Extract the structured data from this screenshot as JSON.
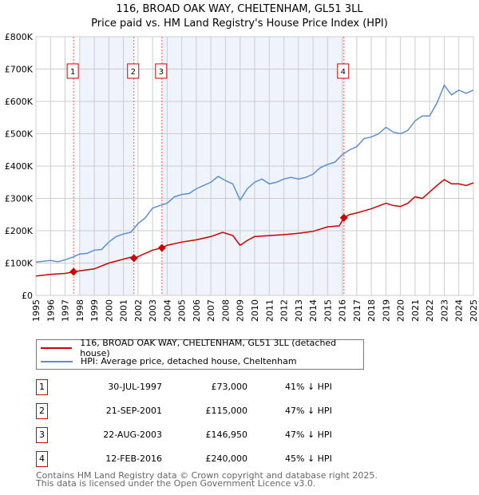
{
  "chart_data": {
    "type": "line",
    "title": "116, BROAD OAK WAY, CHELTENHAM, GL51 3LL",
    "subtitle": "Price paid vs. HM Land Registry's House Price Index (HPI)",
    "xlim": [
      1995,
      2025
    ],
    "ylim": [
      0,
      800000
    ],
    "x_ticks": [
      "1995",
      "1996",
      "1997",
      "1998",
      "1999",
      "2000",
      "2001",
      "2002",
      "2003",
      "2004",
      "2005",
      "2006",
      "2007",
      "2008",
      "2009",
      "2010",
      "2011",
      "2012",
      "2013",
      "2014",
      "2015",
      "2016",
      "2017",
      "2018",
      "2019",
      "2020",
      "2021",
      "2022",
      "2023",
      "2024",
      "2025"
    ],
    "y_ticks": [
      {
        "v": 0,
        "l": "£0"
      },
      {
        "v": 100000,
        "l": "£100K"
      },
      {
        "v": 200000,
        "l": "£200K"
      },
      {
        "v": 300000,
        "l": "£300K"
      },
      {
        "v": 400000,
        "l": "£400K"
      },
      {
        "v": 500000,
        "l": "£500K"
      },
      {
        "v": 600000,
        "l": "£600K"
      },
      {
        "v": 700000,
        "l": "£700K"
      },
      {
        "v": 800000,
        "l": "£800K"
      }
    ],
    "grid": true,
    "shaded_ranges": [
      [
        1998.0,
        2001.72
      ],
      [
        2003.64,
        2016.12
      ]
    ],
    "series": [
      {
        "name": "116, BROAD OAK WAY, CHELTENHAM, GL51 3LL (detached house)",
        "color": "#cc0000",
        "x": [
          1995,
          1996,
          1997,
          1997.58,
          1998,
          1999,
          2000,
          2001,
          2001.5,
          2001.72,
          2002,
          2003,
          2003.64,
          2004,
          2005,
          2006,
          2007,
          2007.8,
          2008.5,
          2009,
          2009.5,
          2010,
          2011,
          2012,
          2013,
          2014,
          2015,
          2015.8,
          2016.12,
          2016.5,
          2017,
          2018,
          2019,
          2019.5,
          2020,
          2020.5,
          2021,
          2021.5,
          2022,
          2022.5,
          2023,
          2023.5,
          2024,
          2024.5,
          2025
        ],
        "y": [
          60,
          65,
          68,
          73,
          76,
          82,
          100,
          112,
          118,
          115,
          120,
          140,
          147,
          155,
          165,
          172,
          182,
          195,
          185,
          155,
          170,
          182,
          185,
          188,
          192,
          198,
          212,
          215,
          240,
          250,
          255,
          268,
          285,
          278,
          275,
          285,
          305,
          300,
          320,
          340,
          358,
          345,
          345,
          340,
          348
        ]
      },
      {
        "name": "HPI: Average price, detached house, Cheltenham",
        "color": "#5b8fd4",
        "x": [
          1995,
          1996,
          1996.5,
          1997,
          1997.5,
          1998,
          1998.5,
          1999,
          1999.5,
          2000,
          2000.5,
          2001,
          2001.5,
          2002,
          2002.5,
          2003,
          2003.5,
          2004,
          2004.5,
          2005,
          2005.5,
          2006,
          2006.5,
          2007,
          2007.5,
          2008,
          2008.5,
          2009,
          2009.5,
          2010,
          2010.5,
          2011,
          2011.5,
          2012,
          2012.5,
          2013,
          2013.5,
          2014,
          2014.5,
          2015,
          2015.5,
          2016,
          2016.5,
          2017,
          2017.5,
          2018,
          2018.5,
          2019,
          2019.5,
          2020,
          2020.5,
          2021,
          2021.5,
          2022,
          2022.5,
          2023,
          2023.5,
          2024,
          2024.5,
          2025
        ],
        "y": [
          103,
          108,
          104,
          110,
          118,
          128,
          130,
          140,
          142,
          165,
          182,
          190,
          195,
          222,
          240,
          270,
          278,
          285,
          305,
          312,
          315,
          330,
          340,
          350,
          368,
          355,
          345,
          295,
          330,
          350,
          360,
          345,
          350,
          360,
          365,
          360,
          365,
          375,
          395,
          405,
          412,
          435,
          450,
          460,
          485,
          490,
          500,
          520,
          505,
          500,
          510,
          540,
          555,
          555,
          595,
          650,
          620,
          635,
          625,
          635
        ]
      }
    ],
    "y_units": "thousands GBP",
    "sales": [
      {
        "n": "1",
        "x": 1997.58,
        "y": 73,
        "date": "30-JUL-1997",
        "price": "£73,000",
        "hpi": "41% ↓ HPI"
      },
      {
        "n": "2",
        "x": 2001.72,
        "y": 115,
        "date": "21-SEP-2001",
        "price": "£115,000",
        "hpi": "47% ↓ HPI"
      },
      {
        "n": "3",
        "x": 2003.64,
        "y": 146.95,
        "date": "22-AUG-2003",
        "price": "£146,950",
        "hpi": "47% ↓ HPI"
      },
      {
        "n": "4",
        "x": 2016.12,
        "y": 240,
        "date": "12-FEB-2016",
        "price": "£240,000",
        "hpi": "45% ↓ HPI"
      }
    ]
  },
  "footer": {
    "line1": "Contains HM Land Registry data © Crown copyright and database right 2025.",
    "line2": "This data is licensed under the Open Government Licence v3.0."
  }
}
